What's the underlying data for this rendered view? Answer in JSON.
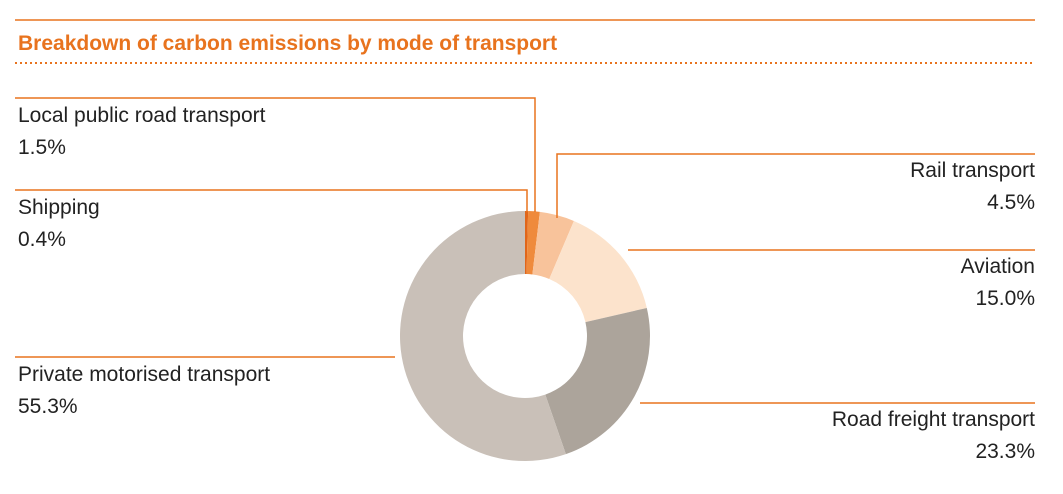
{
  "chart_data": {
    "type": "pie",
    "title": "Breakdown of carbon emissions by mode of transport",
    "categories": [
      "Shipping",
      "Local public road transport",
      "Rail transport",
      "Aviation",
      "Road freight transport",
      "Private motorised transport"
    ],
    "values": [
      0.4,
      1.5,
      4.5,
      15.0,
      23.3,
      55.3
    ],
    "value_labels": [
      "0.4%",
      "1.5%",
      "4.5%",
      "15.0%",
      "23.3%",
      "55.3%"
    ],
    "colors": [
      "#e0661a",
      "#ef8a3c",
      "#f8c39b",
      "#fce3cc",
      "#aca49b",
      "#c9c0b8"
    ]
  }
}
